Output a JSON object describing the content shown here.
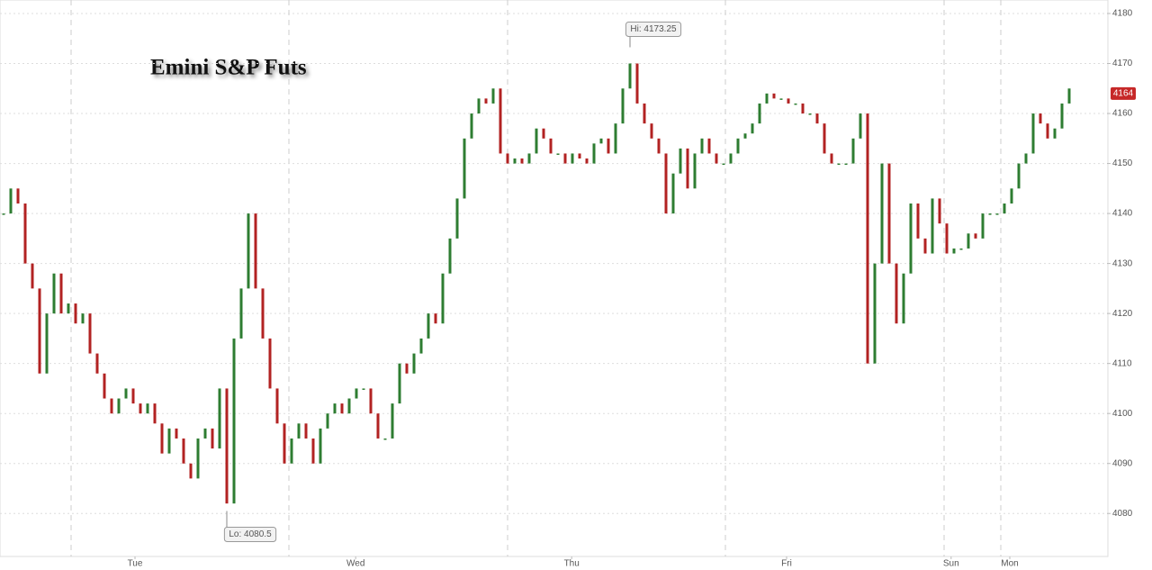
{
  "chart_data": {
    "type": "candlestick",
    "title": "Emini S&P Futs",
    "values": [
      4140,
      4145,
      4142,
      4130,
      4125,
      4108,
      4120,
      4128,
      4120,
      4122,
      4118,
      4120,
      4112,
      4108,
      4103,
      4100,
      4103,
      4105,
      4102,
      4100,
      4102,
      4098,
      4092,
      4097,
      4095,
      4090,
      4087,
      4095,
      4097,
      4093,
      4105,
      4082,
      4115,
      4125,
      4140,
      4125,
      4115,
      4105,
      4098,
      4090,
      4095,
      4098,
      4095,
      4090,
      4097,
      4100,
      4102,
      4100,
      4103,
      4105,
      4105,
      4100,
      4095,
      4095,
      4102,
      4110,
      4108,
      4112,
      4115,
      4120,
      4118,
      4128,
      4135,
      4143,
      4155,
      4160,
      4163,
      4162,
      4165,
      4152,
      4150,
      4151,
      4150,
      4152,
      4157,
      4155,
      4152,
      4152,
      4150,
      4152,
      4151,
      4150,
      4154,
      4155,
      4152,
      4158,
      4165,
      4170,
      4162,
      4158,
      4155,
      4152,
      4140,
      4148,
      4153,
      4145,
      4152,
      4155,
      4152,
      4150,
      4150,
      4152,
      4155,
      4156,
      4158,
      4162,
      4164,
      4163,
      4163,
      4162,
      4162,
      4160,
      4160,
      4158,
      4152,
      4150,
      4150,
      4150,
      4155,
      4160,
      4110,
      4130,
      4150,
      4130,
      4118,
      4128,
      4142,
      4135,
      4132,
      4143,
      4138,
      4132,
      4133,
      4133,
      4136,
      4135,
      4140,
      4140,
      4140,
      4142,
      4145,
      4150,
      4152,
      4160,
      4158,
      4155,
      4157,
      4162,
      4165
    ],
    "up_color": "#2e7d32",
    "down_color": "#b22222",
    "ylim": [
      4071.4,
      4182.7
    ],
    "yticks": [
      4080,
      4090,
      4100,
      4110,
      4120,
      4130,
      4140,
      4150,
      4160,
      4170,
      4180
    ],
    "xlim": [
      -0.5,
      153.25
    ],
    "xticks": [
      {
        "value": 18.25,
        "label": "Tue"
      },
      {
        "value": 48.9,
        "label": "Wed"
      },
      {
        "value": 78.9,
        "label": "Thu"
      },
      {
        "value": 108.75,
        "label": "Fri"
      },
      {
        "value": 131.6,
        "label": "Sun"
      },
      {
        "value": 139.75,
        "label": "Mon"
      }
    ],
    "grid": true,
    "annotations": [
      {
        "text": "Hi: 4173.25",
        "value": 4173.25,
        "index": 87
      },
      {
        "text": "Lo: 4080.5",
        "value": 4080.5,
        "index": 31
      }
    ],
    "last_price": 4164
  }
}
